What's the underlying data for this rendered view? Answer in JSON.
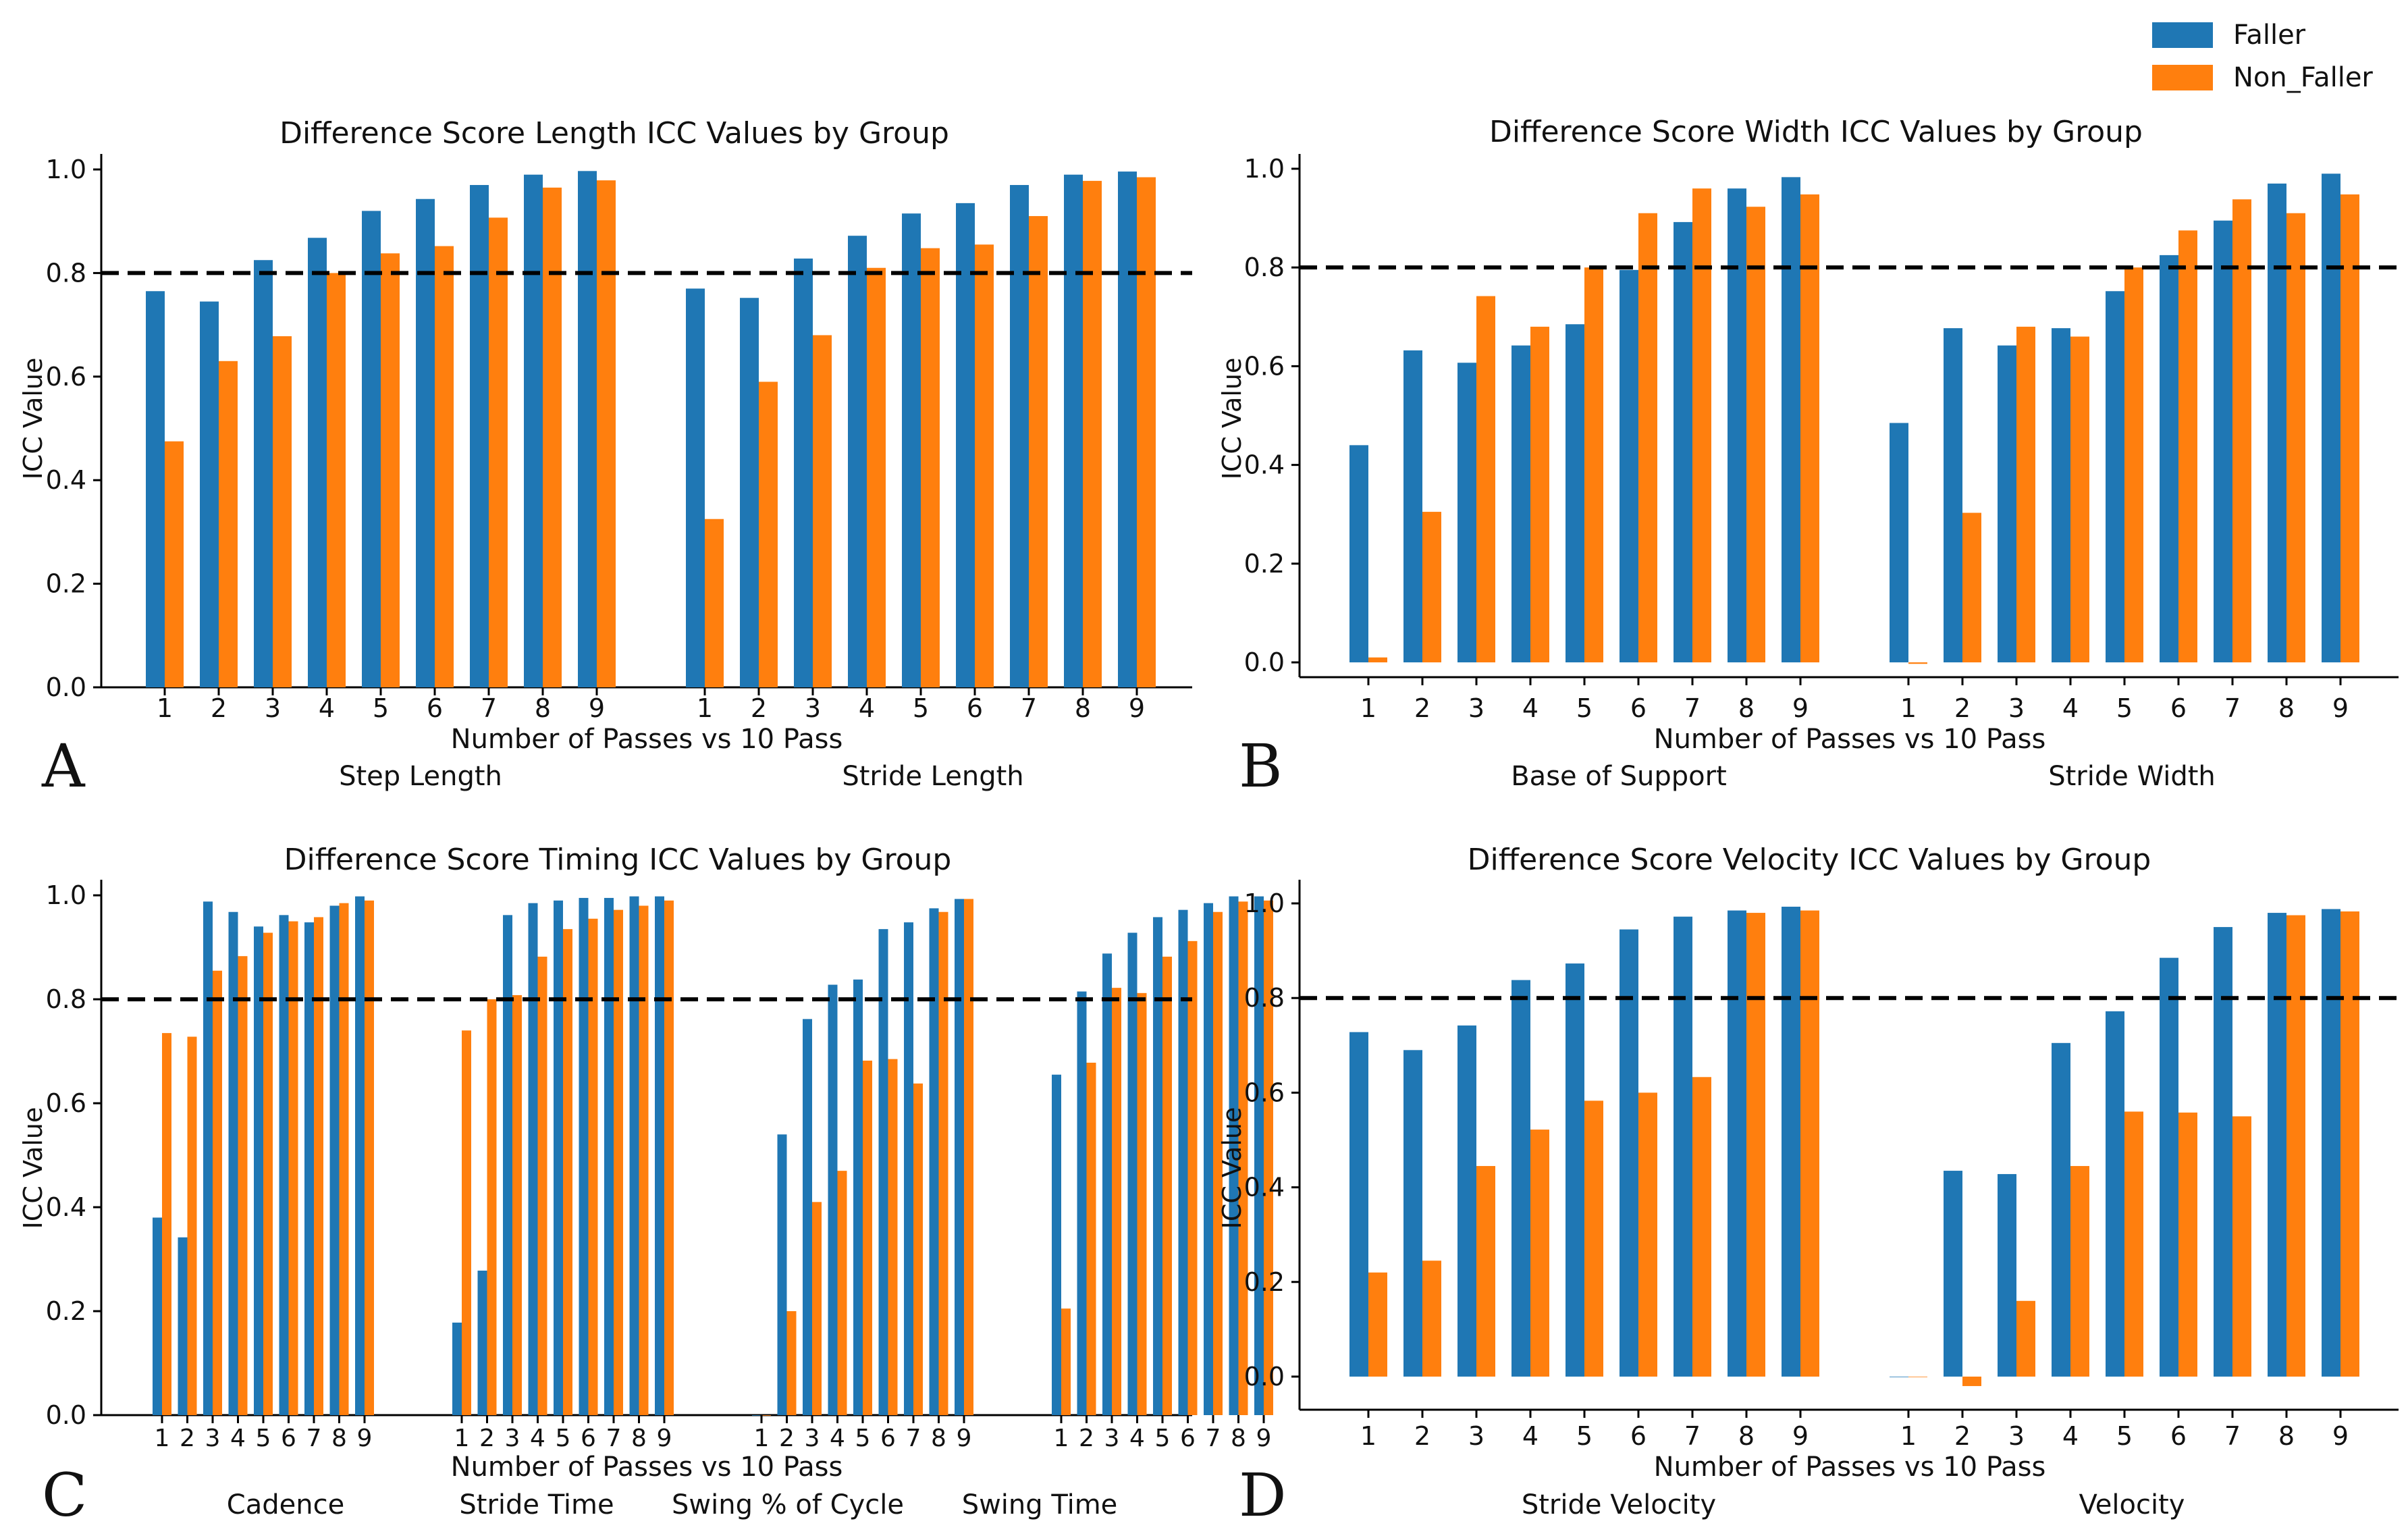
{
  "legend": {
    "entries": [
      {
        "name": "Faller",
        "color": "#1f77b4"
      },
      {
        "name": "Non_Faller",
        "color": "#ff7f0e"
      }
    ],
    "placement": "top-right"
  },
  "chart_data": [
    {
      "panel": "A",
      "type": "bar",
      "title": "Difference Score Length ICC Values by Group",
      "xlabel": "Number of Passes vs 10 Pass",
      "ylabel": "ICC Value",
      "ylim": [
        0.0,
        1.03
      ],
      "yticks": [
        0.0,
        0.2,
        0.4,
        0.6,
        0.8,
        1.0
      ],
      "ytick_labels": [
        "0.0",
        "0.2",
        "0.4",
        "0.6",
        "0.8",
        "1.0"
      ],
      "reference_line": 0.8,
      "groups": [
        {
          "label": "Step Length",
          "categories": [
            "1",
            "2",
            "3",
            "4",
            "5",
            "6",
            "7",
            "8",
            "9"
          ],
          "series": [
            {
              "name": "Faller",
              "values": [
                0.765,
                0.745,
                0.825,
                0.868,
                0.92,
                0.943,
                0.97,
                0.99,
                0.997
              ]
            },
            {
              "name": "Non_Faller",
              "values": [
                0.475,
                0.63,
                0.678,
                0.8,
                0.838,
                0.852,
                0.907,
                0.965,
                0.979
              ]
            }
          ]
        },
        {
          "label": "Stride Length",
          "categories": [
            "1",
            "2",
            "3",
            "4",
            "5",
            "6",
            "7",
            "8",
            "9"
          ],
          "series": [
            {
              "name": "Faller",
              "values": [
                0.77,
                0.752,
                0.828,
                0.872,
                0.915,
                0.935,
                0.97,
                0.99,
                0.996
              ]
            },
            {
              "name": "Non_Faller",
              "values": [
                0.325,
                0.59,
                0.68,
                0.81,
                0.848,
                0.855,
                0.91,
                0.978,
                0.985
              ]
            }
          ]
        }
      ]
    },
    {
      "panel": "B",
      "type": "bar",
      "title": "Difference Score Width ICC Values by Group",
      "xlabel": "Number of Passes vs 10 Pass",
      "ylabel": "ICC Value",
      "ylim": [
        -0.03,
        1.03
      ],
      "yticks": [
        0.0,
        0.2,
        0.4,
        0.6,
        0.8,
        1.0
      ],
      "ytick_labels": [
        "0.0",
        "0.2",
        "0.4",
        "0.6",
        "0.8",
        "1.0"
      ],
      "reference_line": 0.8,
      "groups": [
        {
          "label": "Base of Support",
          "categories": [
            "1",
            "2",
            "3",
            "4",
            "5",
            "6",
            "7",
            "8",
            "9"
          ],
          "series": [
            {
              "name": "Faller",
              "values": [
                0.44,
                0.632,
                0.607,
                0.642,
                0.685,
                0.795,
                0.892,
                0.96,
                0.983
              ]
            },
            {
              "name": "Non_Faller",
              "values": [
                0.01,
                0.305,
                0.742,
                0.68,
                0.8,
                0.91,
                0.96,
                0.923,
                0.948
              ]
            }
          ]
        },
        {
          "label": "Stride Width",
          "categories": [
            "1",
            "2",
            "3",
            "4",
            "5",
            "6",
            "7",
            "8",
            "9"
          ],
          "series": [
            {
              "name": "Faller",
              "values": [
                0.485,
                0.677,
                0.642,
                0.677,
                0.752,
                0.825,
                0.895,
                0.97,
                0.99
              ]
            },
            {
              "name": "Non_Faller",
              "values": [
                -0.003,
                0.303,
                0.68,
                0.66,
                0.8,
                0.875,
                0.938,
                0.91,
                0.948
              ]
            }
          ]
        }
      ]
    },
    {
      "panel": "C",
      "type": "bar",
      "title": "Difference Score Timing ICC Values by Group",
      "xlabel": "Number of Passes vs 10 Pass",
      "ylabel": "ICC Value",
      "ylim": [
        0.0,
        1.03
      ],
      "yticks": [
        0.0,
        0.2,
        0.4,
        0.6,
        0.8,
        1.0
      ],
      "ytick_labels": [
        "0.0",
        "0.2",
        "0.4",
        "0.6",
        "0.8",
        "1.0"
      ],
      "reference_line": 0.8,
      "groups": [
        {
          "label": "Cadence",
          "categories": [
            "1",
            "2",
            "3",
            "4",
            "5",
            "6",
            "7",
            "8",
            "9"
          ],
          "series": [
            {
              "name": "Faller",
              "values": [
                0.38,
                0.342,
                0.988,
                0.968,
                0.94,
                0.962,
                0.948,
                0.98,
                0.998
              ]
            },
            {
              "name": "Non_Faller",
              "values": [
                0.735,
                0.728,
                0.855,
                0.883,
                0.928,
                0.95,
                0.958,
                0.985,
                0.99
              ]
            }
          ]
        },
        {
          "label": "Stride Time",
          "categories": [
            "1",
            "2",
            "3",
            "4",
            "5",
            "6",
            "7",
            "8",
            "9"
          ],
          "series": [
            {
              "name": "Faller",
              "values": [
                0.178,
                0.278,
                0.962,
                0.985,
                0.99,
                0.995,
                0.995,
                0.998,
                0.998
              ]
            },
            {
              "name": "Non_Faller",
              "values": [
                0.74,
                0.8,
                0.808,
                0.882,
                0.935,
                0.955,
                0.972,
                0.98,
                0.99
              ]
            }
          ]
        },
        {
          "label": "Swing % of Cycle",
          "categories": [
            "1",
            "2",
            "3",
            "4",
            "5",
            "6",
            "7",
            "8",
            "9"
          ],
          "series": [
            {
              "name": "Faller",
              "values": [
                0.0,
                0.54,
                0.762,
                0.828,
                0.838,
                0.935,
                0.948,
                0.975,
                0.993
              ]
            },
            {
              "name": "Non_Faller",
              "values": [
                0.0,
                0.2,
                0.41,
                0.47,
                0.682,
                0.685,
                0.638,
                0.968,
                0.993
              ]
            }
          ]
        },
        {
          "label": "Swing Time",
          "categories": [
            "1",
            "2",
            "3",
            "4",
            "5",
            "6",
            "7",
            "8",
            "9"
          ],
          "series": [
            {
              "name": "Faller",
              "values": [
                0.655,
                0.815,
                0.888,
                0.928,
                0.958,
                0.972,
                0.985,
                0.998,
                0.998
              ]
            },
            {
              "name": "Non_Faller",
              "values": [
                0.205,
                0.678,
                0.822,
                0.812,
                0.882,
                0.912,
                0.968,
                0.988,
                0.99
              ]
            }
          ]
        }
      ]
    },
    {
      "panel": "D",
      "type": "bar",
      "title": "Difference Score Velocity ICC Values by Group",
      "xlabel": "Number of Passes vs 10 Pass",
      "ylabel": "ICC Value",
      "ylim": [
        -0.07,
        1.05
      ],
      "yticks": [
        0.0,
        0.2,
        0.4,
        0.6,
        0.8,
        1.0
      ],
      "ytick_labels": [
        "0.0",
        "0.2",
        "0.4",
        "0.6",
        "0.8",
        "1.0"
      ],
      "reference_line": 0.8,
      "groups": [
        {
          "label": "Stride Velocity",
          "categories": [
            "1",
            "2",
            "3",
            "4",
            "5",
            "6",
            "7",
            "8",
            "9"
          ],
          "series": [
            {
              "name": "Faller",
              "values": [
                0.728,
                0.69,
                0.742,
                0.838,
                0.873,
                0.945,
                0.972,
                0.985,
                0.993
              ]
            },
            {
              "name": "Non_Faller",
              "values": [
                0.22,
                0.245,
                0.445,
                0.522,
                0.583,
                0.6,
                0.633,
                0.98,
                0.985
              ]
            }
          ]
        },
        {
          "label": "Velocity",
          "categories": [
            "1",
            "2",
            "3",
            "4",
            "5",
            "6",
            "7",
            "8",
            "9"
          ],
          "series": [
            {
              "name": "Faller",
              "values": [
                0.0,
                0.435,
                0.428,
                0.705,
                0.772,
                0.885,
                0.95,
                0.98,
                0.988
              ]
            },
            {
              "name": "Non_Faller",
              "values": [
                0.0,
                -0.02,
                0.16,
                0.445,
                0.56,
                0.558,
                0.55,
                0.975,
                0.983
              ]
            }
          ]
        }
      ]
    }
  ]
}
